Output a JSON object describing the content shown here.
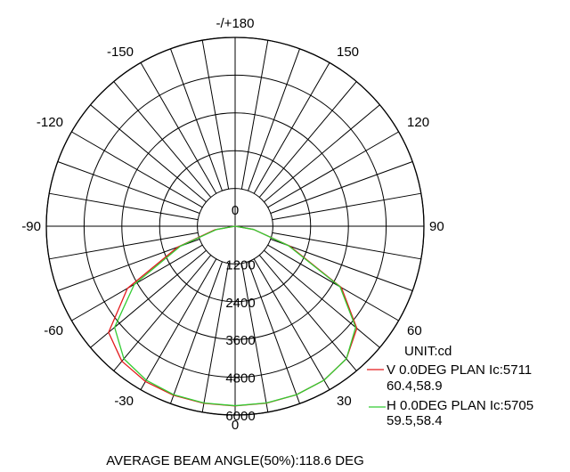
{
  "chart_data": {
    "type": "polar-line",
    "angle_labels": [
      {
        "deg": 0,
        "text": "0"
      },
      {
        "deg": 30,
        "text": "30"
      },
      {
        "deg": 60,
        "text": "60"
      },
      {
        "deg": 90,
        "text": "90"
      },
      {
        "deg": 120,
        "text": "120"
      },
      {
        "deg": 150,
        "text": "150"
      },
      {
        "deg": 180,
        "text": "-/+180"
      },
      {
        "deg": -150,
        "text": "-150"
      },
      {
        "deg": -120,
        "text": "-120"
      },
      {
        "deg": -90,
        "text": "-90"
      },
      {
        "deg": -60,
        "text": "-60"
      },
      {
        "deg": -30,
        "text": "-30"
      }
    ],
    "center_label": "0",
    "radial_ticks": [
      1200,
      2400,
      3600,
      4800,
      6000
    ],
    "radial_max": 6000,
    "spoke_step_deg": 10,
    "grid": true,
    "unit": "UNIT:cd",
    "series": [
      {
        "name": "V 0.0DEG PLAN Ic:5711",
        "sub": "60.4,58.9",
        "color": "#e31a1c",
        "angles": [
          -90,
          -80,
          -70,
          -60,
          -50,
          -40,
          -30,
          -20,
          -10,
          0,
          10,
          20,
          30,
          40,
          50,
          60,
          70,
          80,
          90
        ],
        "values": [
          0,
          650,
          1950,
          3950,
          5250,
          5600,
          5700,
          5720,
          5715,
          5711,
          5710,
          5700,
          5650,
          5500,
          5050,
          3900,
          1850,
          600,
          0
        ]
      },
      {
        "name": "H 0.0DEG PLAN Ic:5705",
        "sub": "59.5,58.4",
        "color": "#33cc33",
        "angles": [
          -90,
          -80,
          -70,
          -60,
          -50,
          -40,
          -30,
          -20,
          -10,
          0,
          10,
          20,
          30,
          40,
          50,
          60,
          70,
          80,
          90
        ],
        "values": [
          0,
          600,
          1850,
          3700,
          5000,
          5500,
          5650,
          5700,
          5705,
          5705,
          5705,
          5700,
          5650,
          5500,
          5000,
          3850,
          1800,
          600,
          0
        ]
      }
    ],
    "footer": "AVERAGE BEAM ANGLE(50%):118.6 DEG"
  }
}
